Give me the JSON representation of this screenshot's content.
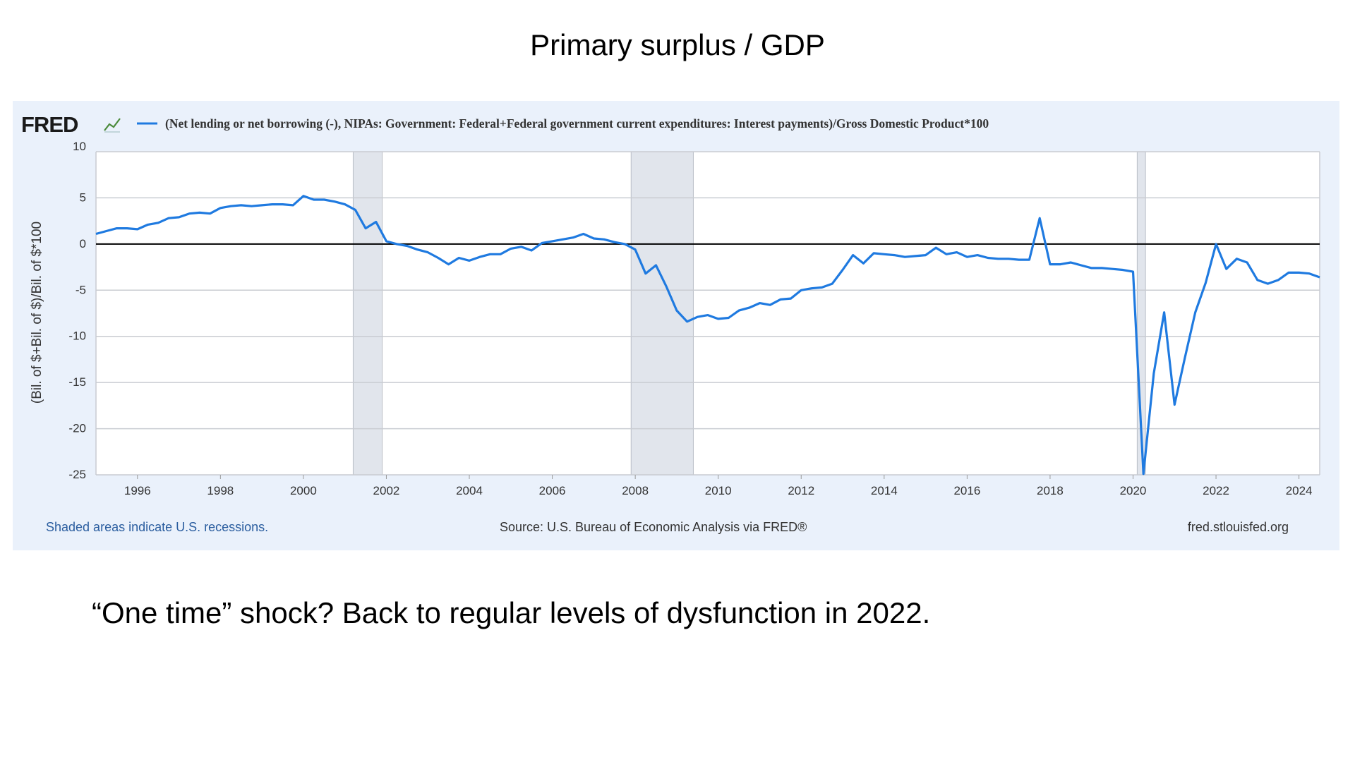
{
  "slide": {
    "title": "Primary surplus / GDP",
    "caption": "“One time” shock? Back to regular levels of dysfunction in 2022."
  },
  "fred": {
    "logo_text": "FRED",
    "logo_icon": "line-chart-icon",
    "legend_label": "(Net lending or net borrowing (-), NIPAs: Government: Federal+Federal government current expenditures: Interest payments)/Gross Domestic Product*100",
    "recession_note": "Shaded areas indicate U.S. recessions.",
    "source": "Source: U.S. Bureau of Economic Analysis via FRED®",
    "site": "fred.stlouisfed.org"
  },
  "colors": {
    "series": "#1f7ae0",
    "recession": "#e1e5ec",
    "panel": "#eaf1fb",
    "zero_line": "#000000",
    "recession_note": "#2a5d9f"
  },
  "chart_data": {
    "type": "line",
    "title": "",
    "xlabel": "",
    "ylabel": "(Bil. of $+Bil. of $)/Bil. of $*100",
    "xlim": [
      1995.0,
      2024.5
    ],
    "ylim": [
      -25,
      10
    ],
    "yticks": [
      10,
      5,
      0,
      -5,
      -10,
      -15,
      -20,
      -25
    ],
    "xticks": [
      1996,
      1998,
      2000,
      2002,
      2004,
      2006,
      2008,
      2010,
      2012,
      2014,
      2016,
      2018,
      2020,
      2022,
      2024
    ],
    "grid": true,
    "zero_line": true,
    "legend_position": "top-left",
    "recessions": [
      [
        2001.2,
        2001.9
      ],
      [
        2007.9,
        2009.4
      ],
      [
        2020.1,
        2020.3
      ]
    ],
    "series": [
      {
        "name": "(Net lending or net borrowing (-), NIPAs: Government: Federal+Federal government current expenditures: Interest payments)/Gross Domestic Product*100",
        "x": [
          1995.0,
          1995.25,
          1995.5,
          1995.75,
          1996.0,
          1996.25,
          1996.5,
          1996.75,
          1997.0,
          1997.25,
          1997.5,
          1997.75,
          1998.0,
          1998.25,
          1998.5,
          1998.75,
          1999.0,
          1999.25,
          1999.5,
          1999.75,
          2000.0,
          2000.25,
          2000.5,
          2000.75,
          2001.0,
          2001.25,
          2001.5,
          2001.75,
          2002.0,
          2002.25,
          2002.5,
          2002.75,
          2003.0,
          2003.25,
          2003.5,
          2003.75,
          2004.0,
          2004.25,
          2004.5,
          2004.75,
          2005.0,
          2005.25,
          2005.5,
          2005.75,
          2006.0,
          2006.25,
          2006.5,
          2006.75,
          2007.0,
          2007.25,
          2007.5,
          2007.75,
          2008.0,
          2008.25,
          2008.5,
          2008.75,
          2009.0,
          2009.25,
          2009.5,
          2009.75,
          2010.0,
          2010.25,
          2010.5,
          2010.75,
          2011.0,
          2011.25,
          2011.5,
          2011.75,
          2012.0,
          2012.25,
          2012.5,
          2012.75,
          2013.0,
          2013.25,
          2013.5,
          2013.75,
          2014.0,
          2014.25,
          2014.5,
          2014.75,
          2015.0,
          2015.25,
          2015.5,
          2015.75,
          2016.0,
          2016.25,
          2016.5,
          2016.75,
          2017.0,
          2017.25,
          2017.5,
          2017.75,
          2018.0,
          2018.25,
          2018.5,
          2018.75,
          2019.0,
          2019.25,
          2019.5,
          2019.75,
          2020.0,
          2020.25,
          2020.5,
          2020.75,
          2021.0,
          2021.25,
          2021.5,
          2021.75,
          2022.0,
          2022.25,
          2022.5,
          2022.75,
          2023.0,
          2023.25,
          2023.5,
          2023.75,
          2024.0,
          2024.25,
          2024.5
        ],
        "values": [
          1.1,
          1.4,
          1.7,
          1.7,
          1.6,
          2.1,
          2.3,
          2.8,
          2.9,
          3.3,
          3.4,
          3.3,
          3.9,
          4.1,
          4.2,
          4.1,
          4.2,
          4.3,
          4.3,
          4.2,
          5.2,
          4.8,
          4.8,
          4.6,
          4.3,
          3.7,
          1.7,
          2.4,
          0.3,
          0.0,
          -0.2,
          -0.6,
          -0.9,
          -1.5,
          -2.2,
          -1.5,
          -1.8,
          -1.4,
          -1.1,
          -1.1,
          -0.5,
          -0.3,
          -0.7,
          0.1,
          0.3,
          0.5,
          0.7,
          1.1,
          0.6,
          0.5,
          0.2,
          0.0,
          -0.6,
          -3.2,
          -2.3,
          -4.6,
          -7.2,
          -8.4,
          -7.9,
          -7.7,
          -8.1,
          -8.0,
          -7.2,
          -6.9,
          -6.4,
          -6.6,
          -6.0,
          -5.9,
          -5.0,
          -4.8,
          -4.7,
          -4.3,
          -2.8,
          -1.2,
          -2.1,
          -1.0,
          -1.1,
          -1.2,
          -1.4,
          -1.3,
          -1.2,
          -0.4,
          -1.1,
          -0.9,
          -1.4,
          -1.2,
          -1.5,
          -1.6,
          -1.6,
          -1.7,
          -1.7,
          2.8,
          -2.2,
          -2.2,
          -2.0,
          -2.3,
          -2.6,
          -2.6,
          -2.7,
          -2.8,
          -3.0,
          -24.9,
          -14.0,
          -7.4,
          -17.4,
          -12.3,
          -7.4,
          -4.2,
          0.0,
          -2.7,
          -1.6,
          -2.0,
          -3.9,
          -4.3,
          -3.9,
          -3.1,
          -3.1,
          -3.2,
          -3.6
        ]
      }
    ]
  }
}
